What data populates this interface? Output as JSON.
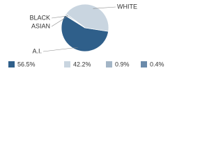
{
  "chart_data": {
    "type": "pie",
    "categories": [
      "A.I.",
      "WHITE",
      "BLACK",
      "ASIAN"
    ],
    "values": [
      56.5,
      42.2,
      0.9,
      0.4
    ],
    "value_labels": [
      "56.5%",
      "42.2%",
      "0.9%",
      "0.4%"
    ],
    "colors": [
      "#2f5f8a",
      "#c9d5e0",
      "#a3b5c6",
      "#6a8aaa"
    ]
  }
}
